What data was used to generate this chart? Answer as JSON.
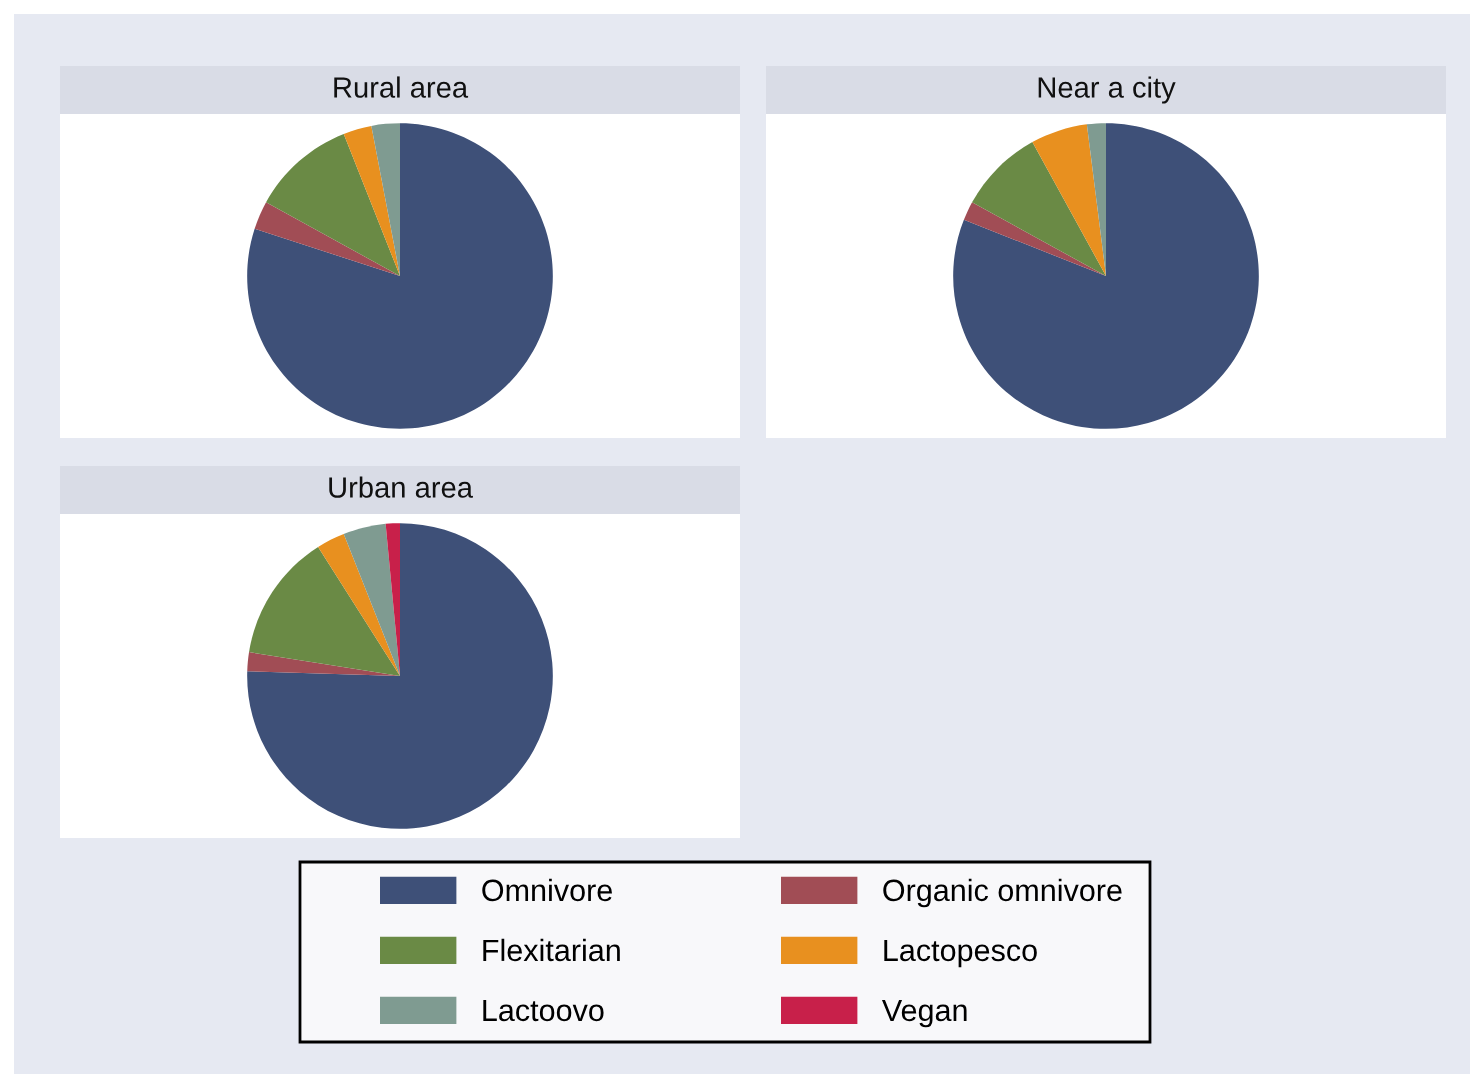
{
  "chart_data": [
    {
      "type": "pie",
      "title": "Rural area",
      "categories": [
        null,
        null,
        null,
        null,
        null,
        null
      ],
      "values": [
        80,
        3,
        11,
        3,
        3,
        0
      ],
      "colors": [
        "#3e5078",
        "#a14d55",
        "#6a8a45",
        "#e8901f",
        "#7f9b91",
        "#c8204a"
      ]
    },
    {
      "type": "pie",
      "title": "Near a city",
      "categories": [
        null,
        null,
        null,
        null,
        null,
        null
      ],
      "values": [
        81,
        2,
        9,
        6,
        2,
        0
      ],
      "colors": [
        "#3e5078",
        "#a14d55",
        "#6a8a45",
        "#e8901f",
        "#7f9b91",
        "#c8204a"
      ]
    },
    {
      "type": "pie",
      "title": "Urban area",
      "categories": [
        "Omnivore",
        "Organic omnivore",
        "Flexitarian",
        "Lactopesco",
        "Lactoovo",
        "Vegan"
      ],
      "values": [
        75.5,
        2,
        13.5,
        3,
        4.5,
        1.5
      ],
      "colors": [
        "#3e5078",
        "#a14d55",
        "#6a8a45",
        "#e8901f",
        "#7f9b91",
        "#c8204a"
      ],
      "legend": "bottom"
    }
  ]
}
